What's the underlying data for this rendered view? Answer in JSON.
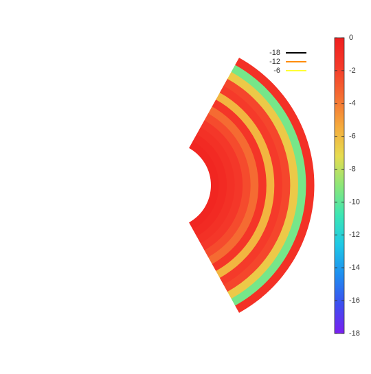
{
  "chart_data": {
    "type": "polar-heatmap",
    "values": [
      -0.5,
      -0.8,
      -1.2,
      -1.6,
      -2.4,
      -3.5,
      -1.5,
      -5.8,
      -1.8,
      -2.2,
      -6.5,
      -9.5,
      -1.2
    ],
    "colorbar": {
      "lim": [
        -18,
        0
      ],
      "ticks": [
        0,
        -2,
        -4,
        -6,
        -8,
        -10,
        -12,
        -14,
        -16,
        -18
      ],
      "colors": [
        "#7a1ff0",
        "#3c4ff0",
        "#1e8ff0",
        "#1ec8e6",
        "#3ce6b4",
        "#8ce678",
        "#e6dc50",
        "#f5aa3c",
        "#f56e32",
        "#f53a2a",
        "#f01e1e"
      ]
    },
    "series": [
      {
        "name": "-18",
        "color": "#000000"
      },
      {
        "name": "-12",
        "color": "#ff8c00"
      },
      {
        "name": "-6",
        "color": "#ffff33"
      }
    ]
  }
}
